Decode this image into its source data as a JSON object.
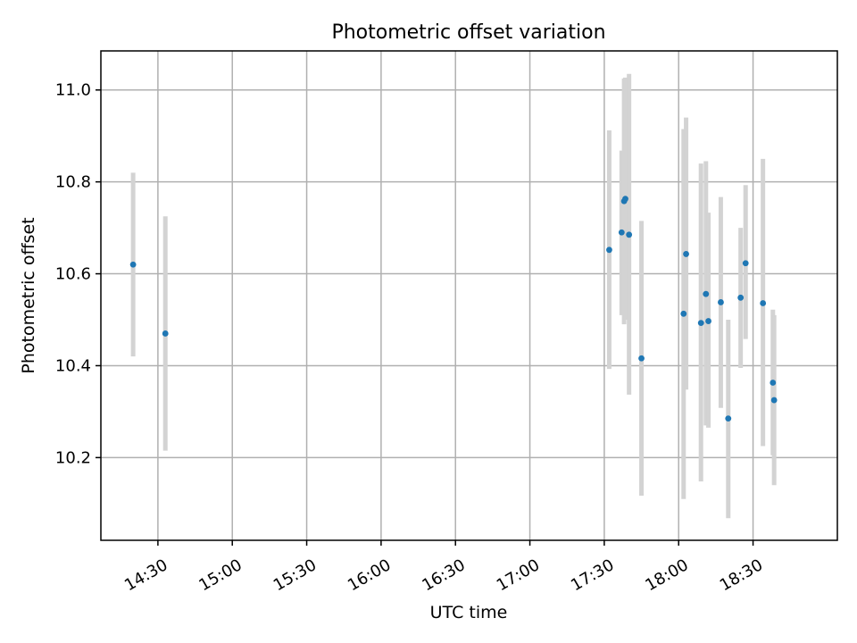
{
  "chart_data": {
    "type": "scatter",
    "title": "Photometric offset variation",
    "xlabel": "UTC time",
    "ylabel": "Photometric offset",
    "x_axis_type": "time",
    "xlim": [
      "14:07",
      "19:04"
    ],
    "ylim": [
      10.02,
      11.085
    ],
    "grid": true,
    "x_ticks": [
      "14:30",
      "15:00",
      "15:30",
      "16:00",
      "16:30",
      "17:00",
      "17:30",
      "18:00",
      "18:30"
    ],
    "y_ticks": [
      10.2,
      10.4,
      10.6,
      10.8,
      11.0
    ],
    "y_tick_labels": [
      "10.2",
      "10.4",
      "10.6",
      "10.8",
      "11.0"
    ],
    "marker_color": "#1f77b4",
    "errorbar_color": "#d3d3d3",
    "points": [
      {
        "time": "14:20",
        "y": 10.62,
        "ylow": 10.42,
        "yhigh": 10.82
      },
      {
        "time": "14:33",
        "y": 10.47,
        "ylow": 10.215,
        "yhigh": 10.725
      },
      {
        "time": "17:32",
        "y": 10.652,
        "ylow": 10.393,
        "yhigh": 10.912
      },
      {
        "time": "17:37",
        "y": 10.69,
        "ylow": 10.51,
        "yhigh": 10.868
      },
      {
        "time": "17:38",
        "y": 10.758,
        "ylow": 10.49,
        "yhigh": 11.025
      },
      {
        "time": "17:38:30",
        "y": 10.763,
        "ylow": 10.5,
        "yhigh": 11.027
      },
      {
        "time": "17:40",
        "y": 10.685,
        "ylow": 10.337,
        "yhigh": 11.035
      },
      {
        "time": "17:45",
        "y": 10.416,
        "ylow": 10.117,
        "yhigh": 10.715
      },
      {
        "time": "18:02",
        "y": 10.513,
        "ylow": 10.11,
        "yhigh": 10.915
      },
      {
        "time": "18:03",
        "y": 10.643,
        "ylow": 10.348,
        "yhigh": 10.94
      },
      {
        "time": "18:09",
        "y": 10.493,
        "ylow": 10.148,
        "yhigh": 10.84
      },
      {
        "time": "18:11",
        "y": 10.556,
        "ylow": 10.27,
        "yhigh": 10.845
      },
      {
        "time": "18:12",
        "y": 10.497,
        "ylow": 10.265,
        "yhigh": 10.733
      },
      {
        "time": "18:17",
        "y": 10.538,
        "ylow": 10.308,
        "yhigh": 10.767
      },
      {
        "time": "18:20",
        "y": 10.285,
        "ylow": 10.068,
        "yhigh": 10.5
      },
      {
        "time": "18:25",
        "y": 10.548,
        "ylow": 10.395,
        "yhigh": 10.7
      },
      {
        "time": "18:27",
        "y": 10.623,
        "ylow": 10.458,
        "yhigh": 10.793
      },
      {
        "time": "18:34",
        "y": 10.536,
        "ylow": 10.225,
        "yhigh": 10.85
      },
      {
        "time": "18:38",
        "y": 10.363,
        "ylow": 10.205,
        "yhigh": 10.522
      },
      {
        "time": "18:38:30",
        "y": 10.325,
        "ylow": 10.14,
        "yhigh": 10.51
      }
    ]
  }
}
